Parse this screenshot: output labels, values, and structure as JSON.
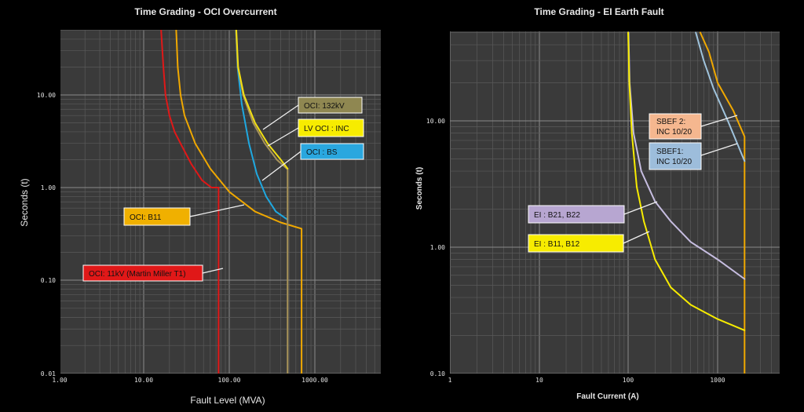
{
  "chart_data": [
    {
      "type": "line",
      "title": "Time Grading - OCI Overcurrent",
      "xlabel": "Fault Level (MVA)",
      "ylabel": "Seconds (t)",
      "xscale": "log",
      "yscale": "log",
      "xlim": [
        1,
        5000
      ],
      "ylim": [
        0.01,
        50
      ],
      "x_ticks": [
        "1.00",
        "10.00",
        "100.00",
        "1000.00"
      ],
      "y_ticks": [
        "0.01",
        "0.10",
        "1.00",
        "10.00"
      ],
      "grid": true,
      "series": [
        {
          "name": "OCI: 11kV (Martin Miller T1)",
          "color": "#e01818",
          "x": [
            16,
            17,
            18,
            20,
            23,
            28,
            36,
            48,
            62,
            75,
            75,
            75
          ],
          "y": [
            50,
            20,
            10,
            6,
            4,
            2.8,
            1.8,
            1.2,
            1.0,
            1.0,
            0.1,
            0.01
          ],
          "label": {
            "box": "#e01818",
            "text": "#ffffff",
            "border": "#ffffff"
          }
        },
        {
          "name": "OCI: B11",
          "color": "#f0a800",
          "x": [
            24,
            25,
            27,
            30,
            40,
            60,
            100,
            200,
            400,
            700,
            700,
            700
          ],
          "y": [
            50,
            20,
            10,
            6,
            3,
            1.6,
            0.9,
            0.55,
            0.42,
            0.36,
            0.1,
            0.01
          ],
          "label": {
            "box": "#f0b000",
            "text": "#111111",
            "border": "#ffffff"
          }
        },
        {
          "name": "OCI : BS",
          "color": "#1fa8e0",
          "x": [
            120,
            125,
            140,
            170,
            210,
            270,
            350,
            480
          ],
          "y": [
            50,
            20,
            8,
            3,
            1.4,
            0.8,
            0.55,
            0.45
          ],
          "label": {
            "box": "#2aa7df",
            "text": "#111111",
            "border": "#ffffff"
          }
        },
        {
          "name": "OCI: 132kV",
          "color": "#a9945a",
          "x": [
            120,
            126,
            145,
            190,
            260,
            360,
            470,
            480,
            480
          ],
          "y": [
            50,
            20,
            10,
            5,
            3,
            2,
            1.6,
            1.6,
            0.01
          ],
          "label": {
            "box": "#8f8751",
            "text": "#111111",
            "border": "#ffffff"
          }
        },
        {
          "name": "LV OCI : INC",
          "color": "#f2e012",
          "x": [
            121,
            127,
            148,
            200,
            280,
            400,
            480
          ],
          "y": [
            50,
            20,
            10,
            5,
            3,
            2,
            1.6
          ],
          "label": {
            "box": "#f7ec00",
            "text": "#111111",
            "border": "#ffffff"
          }
        }
      ]
    },
    {
      "type": "line",
      "title": "Time Grading - EI Earth Fault",
      "xlabel": "Fault Current (A)",
      "ylabel": "Seconds (t)",
      "xscale": "log",
      "yscale": "log",
      "xlim": [
        1,
        7000
      ],
      "ylim": [
        0.1,
        50
      ],
      "x_ticks": [
        "1",
        "10",
        "100",
        "1000"
      ],
      "y_ticks": [
        "0.10",
        "1.00",
        "10.00"
      ],
      "grid": true,
      "series": [
        {
          "name": "SBEF 2: INC 10/20",
          "color": "#f0a800",
          "x": [
            640,
            800,
            1000,
            1500,
            2000,
            2000,
            2000
          ],
          "y": [
            50,
            35,
            20,
            12,
            7.5,
            1,
            0.1
          ],
          "label": {
            "box": "#f5b78f",
            "text": "#111111",
            "border": "#ffffff"
          }
        },
        {
          "name": "SBEF1: INC 10/20",
          "color": "#9fc3dc",
          "x": [
            570,
            700,
            900,
            1300,
            2000
          ],
          "y": [
            50,
            30,
            18,
            10,
            4.8
          ],
          "label": {
            "box": "#9dbddb",
            "text": "#111111",
            "border": "#ffffff"
          }
        },
        {
          "name": "EI : B21, B22",
          "color": "#c6bde0",
          "x": [
            101,
            104,
            115,
            140,
            200,
            300,
            500,
            1000,
            2000
          ],
          "y": [
            50,
            20,
            8,
            4,
            2.3,
            1.6,
            1.1,
            0.8,
            0.56
          ],
          "label": {
            "box": "#b7a6d1",
            "text": "#111111",
            "border": "#ffffff"
          }
        },
        {
          "name": "EI : B11, B12",
          "color": "#f7ec00",
          "x": [
            100,
            103,
            110,
            125,
            150,
            200,
            300,
            500,
            1000,
            2000
          ],
          "y": [
            50,
            20,
            8,
            3,
            1.6,
            0.8,
            0.48,
            0.35,
            0.27,
            0.22
          ],
          "label": {
            "box": "#f7ec00",
            "text": "#111111",
            "border": "#ffffff"
          }
        }
      ]
    }
  ]
}
